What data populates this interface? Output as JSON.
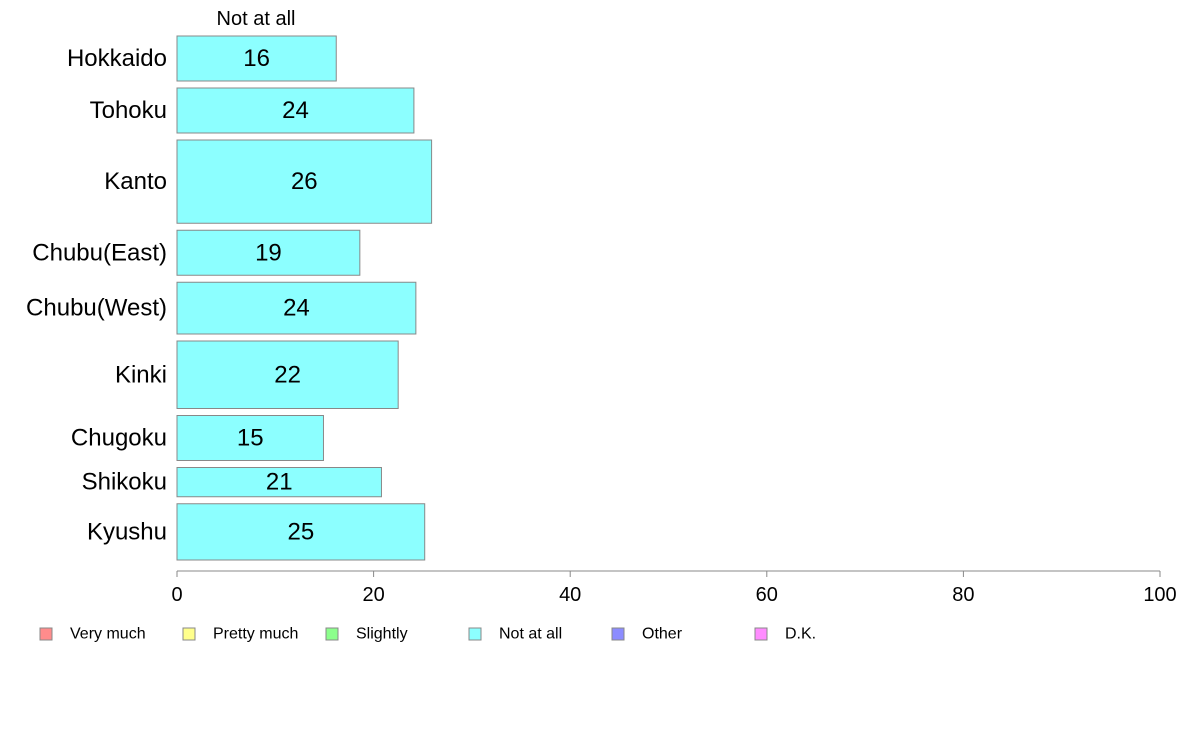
{
  "chart_data": {
    "type": "bar",
    "orientation": "horizontal",
    "stacked": true,
    "categories": [
      "Hokkaido",
      "Tohoku",
      "Kanto",
      "Chubu(East)",
      "Chubu(West)",
      "Kinki",
      "Chugoku",
      "Shikoku",
      "Kyushu"
    ],
    "relative_widths": [
      1.0,
      1.0,
      1.85,
      1.0,
      1.15,
      1.5,
      1.0,
      0.65,
      1.25
    ],
    "series": [
      {
        "name": "Not at all",
        "values": [
          16.2,
          24.1,
          25.9,
          18.6,
          24.3,
          22.5,
          14.9,
          20.8,
          25.2
        ],
        "labels": [
          "16",
          "24",
          "26",
          "19",
          "24",
          "22",
          "15",
          "21",
          "25"
        ],
        "color": "#8cffff"
      }
    ],
    "segment_title": "Not at all",
    "xlim": [
      0,
      100
    ],
    "xticks": [
      0,
      20,
      40,
      60,
      80,
      100
    ],
    "xlabel": "",
    "ylabel": "",
    "title": "",
    "grid": false,
    "legend": {
      "position": "bottom",
      "items": [
        {
          "label": "Very much",
          "color": "#ff8c8c"
        },
        {
          "label": "Pretty much",
          "color": "#ffff8c"
        },
        {
          "label": "Slightly",
          "color": "#8cff8c"
        },
        {
          "label": "Not at all",
          "color": "#8cffff"
        },
        {
          "label": "Other",
          "color": "#8c8cff"
        },
        {
          "label": "D.K.",
          "color": "#ff8cff"
        }
      ]
    }
  }
}
